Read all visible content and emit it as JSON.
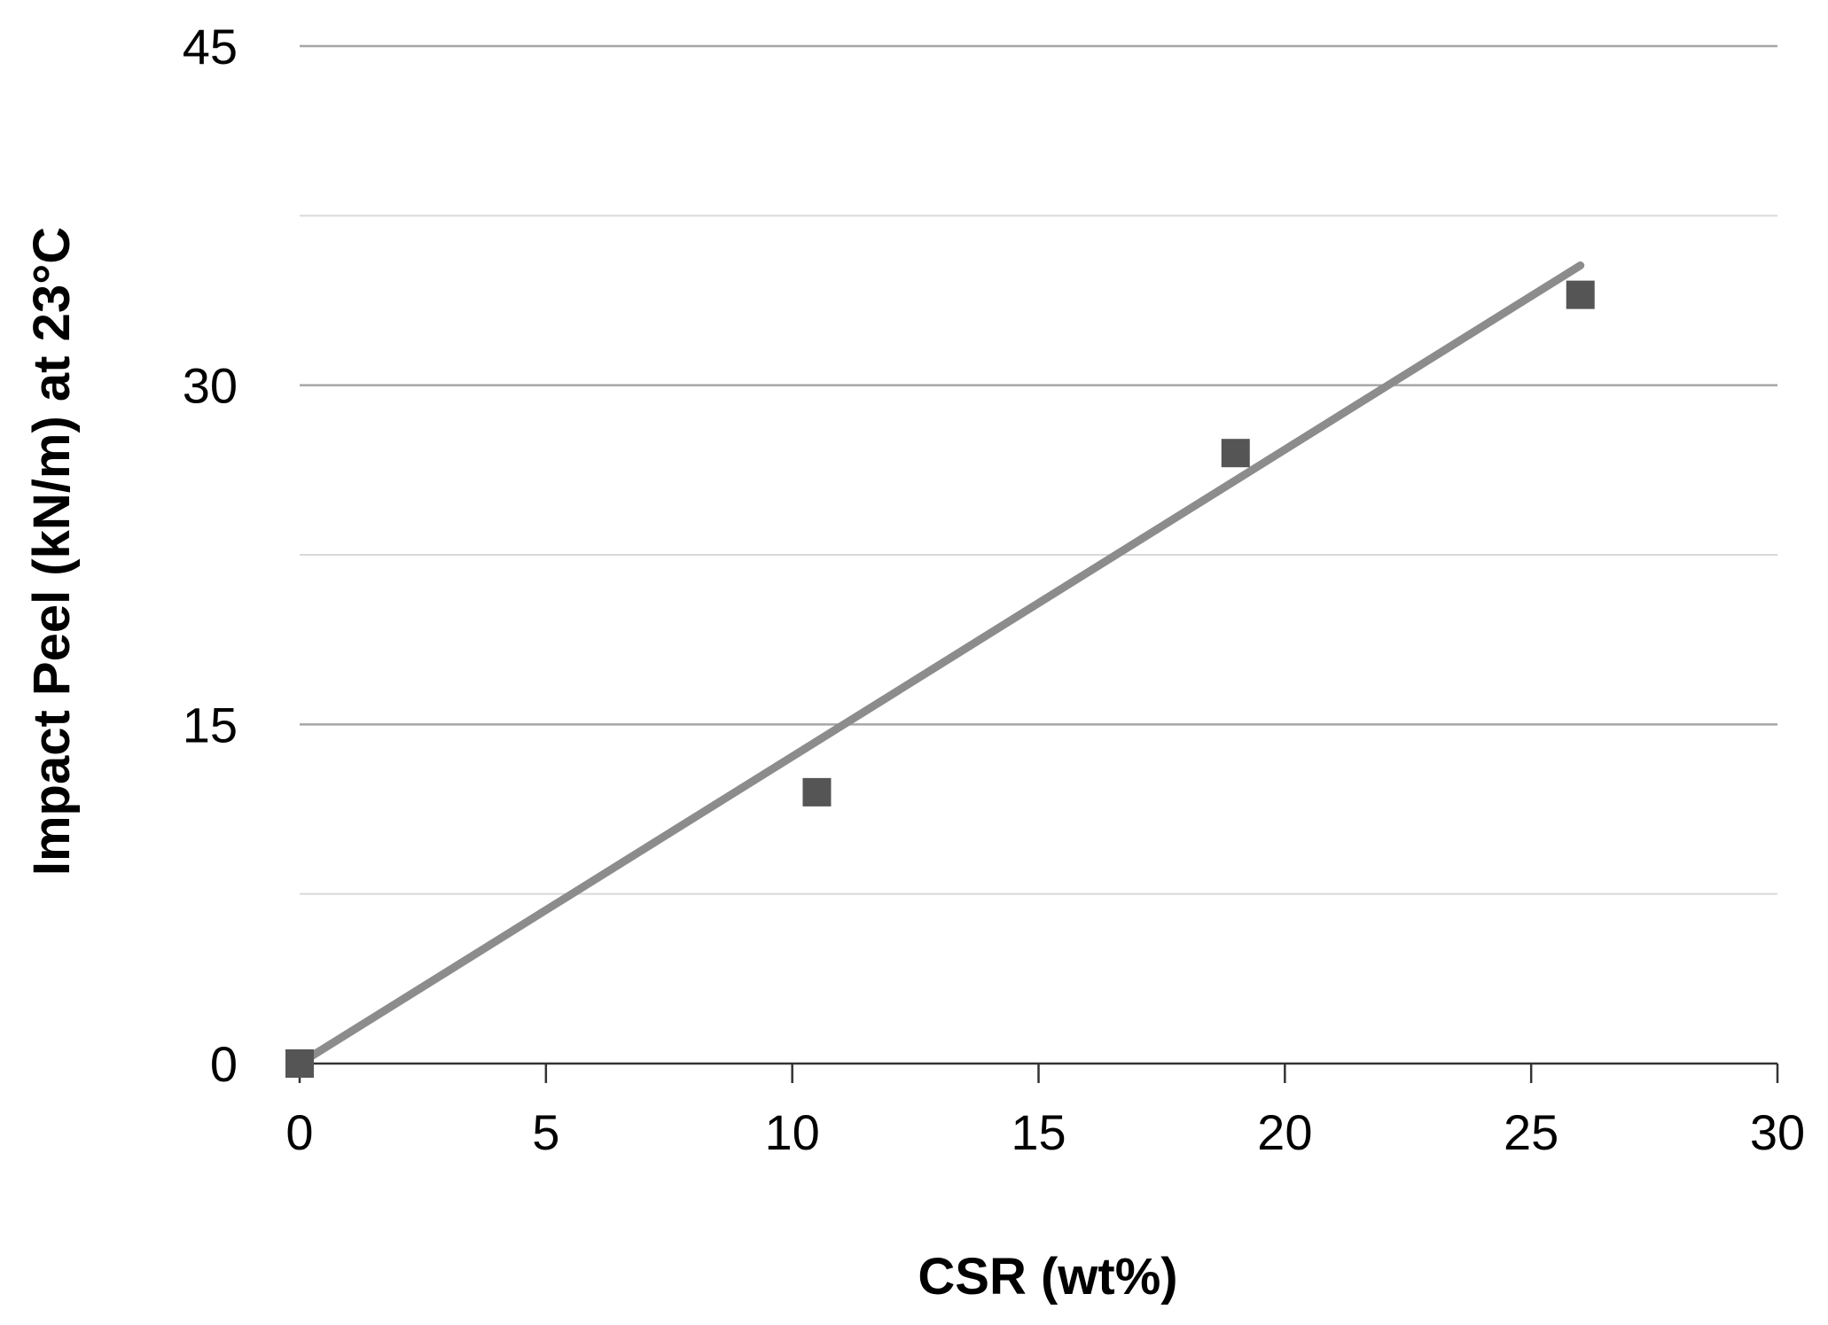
{
  "chart_data": {
    "type": "scatter",
    "title": "",
    "xlabel": "CSR (wt%)",
    "ylabel": "Impact Peel (kN/m) at 23°C",
    "xlim": [
      0,
      30
    ],
    "ylim": [
      0,
      45
    ],
    "x_ticks": [
      0,
      5,
      10,
      15,
      20,
      25,
      30
    ],
    "y_ticks": [
      0,
      15,
      30,
      45
    ],
    "y_minor_gridlines": [
      7.5,
      22.5,
      37.5
    ],
    "grid": true,
    "legend": "none",
    "series": [
      {
        "marker": "square",
        "points": [
          {
            "x": 0,
            "y": 0
          },
          {
            "x": 10.5,
            "y": 12
          },
          {
            "x": 19,
            "y": 27
          },
          {
            "x": 26,
            "y": 34
          }
        ]
      }
    ],
    "trendline": {
      "type": "linear",
      "from": {
        "x": 0,
        "y": 0
      },
      "to": {
        "x": 26,
        "y": 35.3
      }
    }
  },
  "colors": {
    "background": "#ffffff",
    "marker": "#555555",
    "trendline": "#8c8c8c",
    "major_grid": "#a6a6a6",
    "minor_grid": "#d9d9d9",
    "axis": "#333333",
    "text": "#000000"
  }
}
